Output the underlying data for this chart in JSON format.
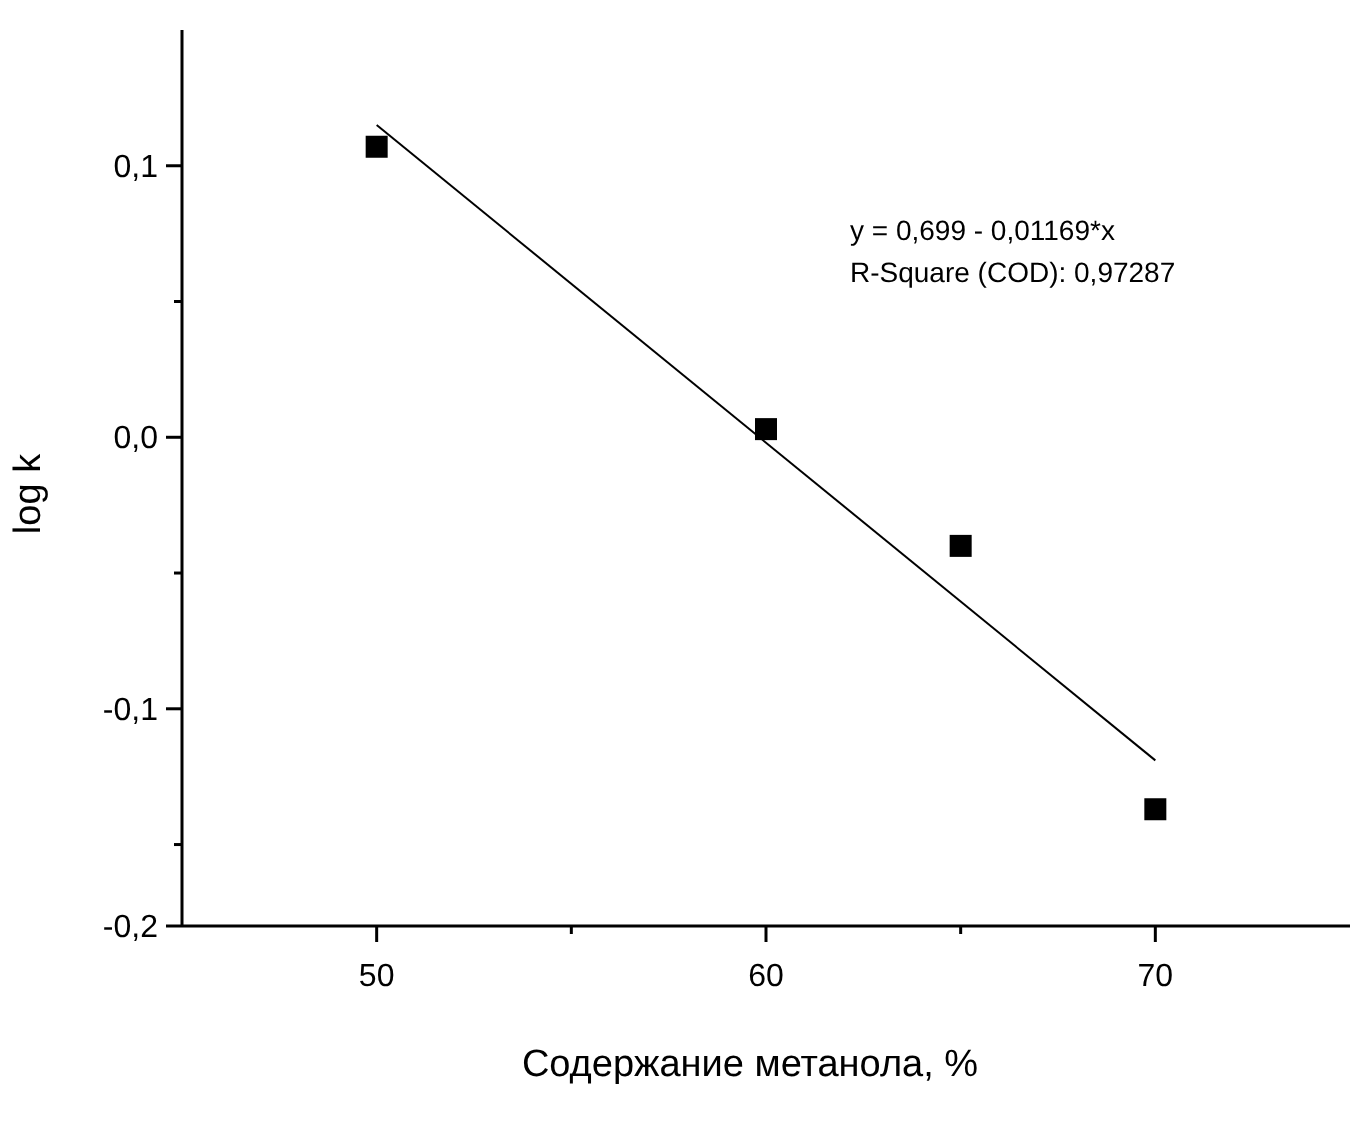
{
  "chart_data": {
    "type": "scatter",
    "xlabel": "Содержание метанола, %",
    "ylabel": "log k",
    "xlim": [
      45,
      75
    ],
    "xticks": [
      50,
      {
        "value": 55,
        "label": null
      },
      60,
      {
        "value": 65,
        "label": null
      },
      70
    ],
    "ylim": [
      -0.18,
      0.15
    ],
    "yticks": [
      {
        "value": -0.18,
        "label": "-0,2"
      },
      {
        "value": -0.15,
        "label": null
      },
      {
        "value": -0.1,
        "label": "-0,1"
      },
      {
        "value": -0.05,
        "label": null
      },
      {
        "value": 0,
        "label": "0,0"
      },
      {
        "value": 0.05,
        "label": null
      },
      {
        "value": 0.1,
        "label": "0,1"
      }
    ],
    "grid": false,
    "series": [
      {
        "marker": "square",
        "color": "#000000",
        "x": [
          50,
          60,
          65,
          70
        ],
        "values": [
          0.107,
          0.003,
          -0.04,
          -0.137
        ]
      },
      {
        "type": "line",
        "marker": "none",
        "line_style": "solid",
        "color": "#000000",
        "x": [
          50,
          70
        ],
        "values": [
          0.115,
          -0.119
        ]
      }
    ],
    "annotations": [
      "y = 0,699 - 0,01169*x",
      "R-Square (COD): 0,97287"
    ]
  }
}
